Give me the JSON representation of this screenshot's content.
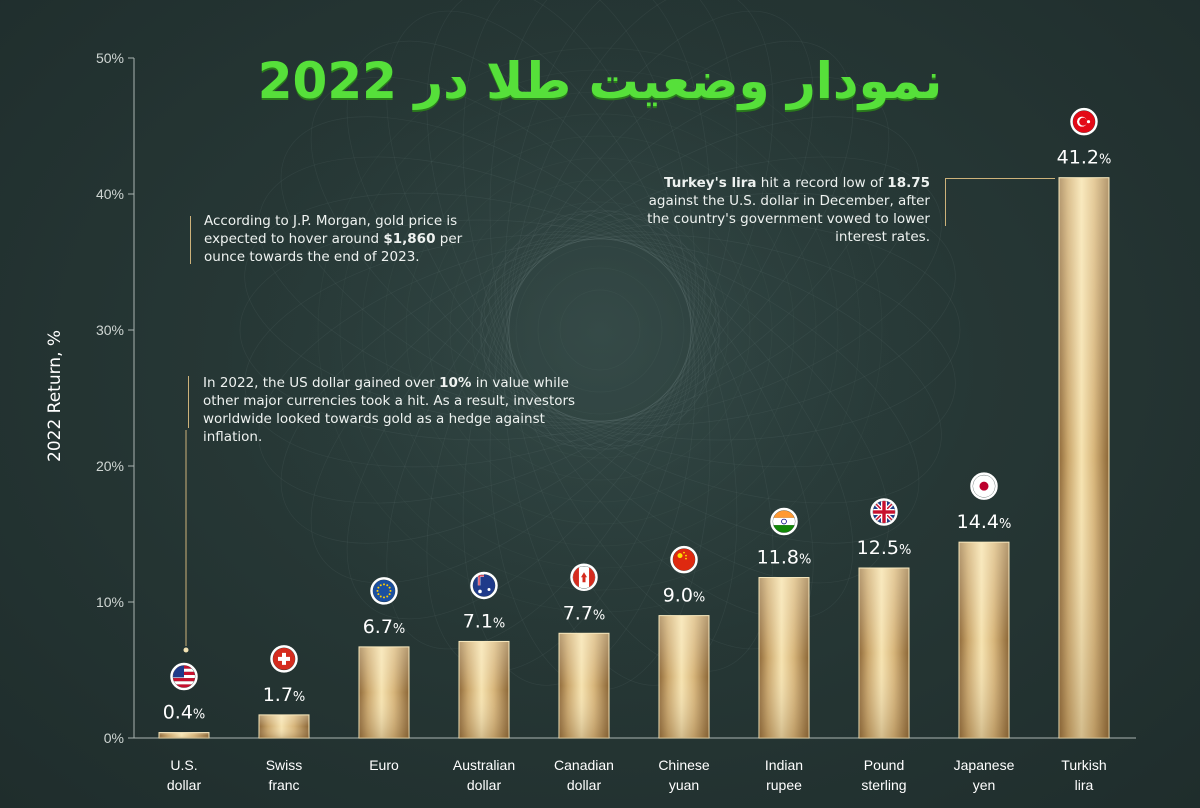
{
  "title": "نمودار وضعیت طلا در 2022",
  "notes": {
    "jpmorgan": {
      "pre": "According to J.P. Morgan, gold price is expected to hover around ",
      "bold": "$1,860",
      "post": " per ounce towards the end of 2023."
    },
    "usd": {
      "pre": "In 2022, the US dollar gained over ",
      "bold": "10%",
      "post": " in value while other major currencies took a hit. As a result, investors worldwide looked towards gold as a hedge against inflation."
    },
    "turkey": {
      "bold1": "Turkey's lira",
      "mid": " hit a record low of ",
      "bold2": "18.75",
      "post": " against the U.S. dollar in December, after the country's government vowed to lower interest rates."
    }
  },
  "colors": {
    "background": "#263735",
    "gold_light": "#f4dfa8",
    "gold_dark": "#a9824a",
    "title_green": "#56e03a"
  },
  "chart_data": {
    "type": "bar",
    "ylabel": "2022 Return, %",
    "xlabel": "",
    "ylim": [
      0,
      50
    ],
    "yticks": [
      "0%",
      "10%",
      "20%",
      "30%",
      "40%",
      "50%"
    ],
    "grid": false,
    "categories": [
      {
        "line1": "U.S.",
        "line2": "dollar",
        "flag": "us-flag-icon"
      },
      {
        "line1": "Swiss",
        "line2": "franc",
        "flag": "swiss-flag-icon"
      },
      {
        "line1": "Euro",
        "line2": "",
        "flag": "eu-flag-icon"
      },
      {
        "line1": "Australian",
        "line2": "dollar",
        "flag": "australia-flag-icon"
      },
      {
        "line1": "Canadian",
        "line2": "dollar",
        "flag": "canada-flag-icon"
      },
      {
        "line1": "Chinese",
        "line2": "yuan",
        "flag": "china-flag-icon"
      },
      {
        "line1": "Indian",
        "line2": "rupee",
        "flag": "india-flag-icon"
      },
      {
        "line1": "Pound",
        "line2": "sterling",
        "flag": "uk-flag-icon"
      },
      {
        "line1": "Japanese",
        "line2": "yen",
        "flag": "japan-flag-icon"
      },
      {
        "line1": "Turkish",
        "line2": "lira",
        "flag": "turkey-flag-icon"
      }
    ],
    "values": [
      0.4,
      1.7,
      6.7,
      7.1,
      7.7,
      9.0,
      11.8,
      12.5,
      14.4,
      41.2
    ],
    "value_labels": [
      "0.4%",
      "1.7%",
      "6.7%",
      "7.1%",
      "7.7%",
      "9.0%",
      "11.8%",
      "12.5%",
      "14.4%",
      "41.2%"
    ]
  }
}
